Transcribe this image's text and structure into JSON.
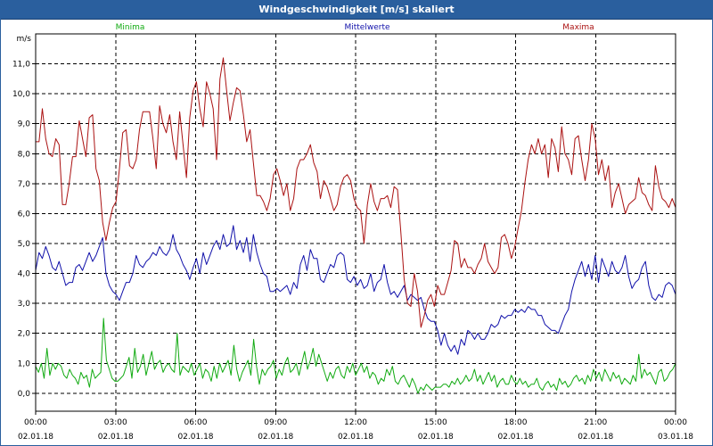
{
  "window": {
    "title": "Windgeschwindigkeit [m/s] skaliert"
  },
  "chart_data": {
    "type": "line",
    "title": "Windgeschwindigkeit [m/s] skaliert",
    "ylabel": "m/s",
    "xlabel": "",
    "ylim": [
      -0.6,
      12.0
    ],
    "xlim": [
      0,
      24
    ],
    "grid": true,
    "yticks": [
      0,
      1,
      2,
      3,
      4,
      5,
      6,
      7,
      8,
      9,
      10,
      11
    ],
    "ytick_labels": [
      "0,0",
      "1,0",
      "2,0",
      "3,0",
      "4,0",
      "5,0",
      "6,0",
      "7,0",
      "8,0",
      "9,0",
      "10,0",
      "11,0"
    ],
    "xticks": [
      {
        "x": 0,
        "time": "00:00",
        "date": "02.01.18"
      },
      {
        "x": 3,
        "time": "03:00",
        "date": "02.01.18"
      },
      {
        "x": 6,
        "time": "06:00",
        "date": "02.01.18"
      },
      {
        "x": 9,
        "time": "09:00",
        "date": "02.01.18"
      },
      {
        "x": 12,
        "time": "12:00",
        "date": "02.01.18"
      },
      {
        "x": 15,
        "time": "15:00",
        "date": "02.01.18"
      },
      {
        "x": 18,
        "time": "18:00",
        "date": "02.01.18"
      },
      {
        "x": 21,
        "time": "21:00",
        "date": "02.01.18"
      },
      {
        "x": 24,
        "time": "00:00",
        "date": "03.01.18"
      }
    ],
    "legend_placement": "top",
    "series": [
      {
        "name": "Minima",
        "color": "#11aa11",
        "values": [
          0.9,
          0.7,
          1.0,
          0.5,
          1.5,
          0.6,
          1.0,
          0.8,
          1.0,
          0.9,
          0.6,
          0.5,
          0.8,
          0.6,
          0.5,
          0.3,
          0.7,
          0.5,
          0.6,
          0.2,
          0.8,
          0.5,
          0.6,
          0.7,
          2.5,
          1.1,
          0.8,
          0.5,
          0.4,
          0.4,
          0.5,
          0.6,
          0.9,
          1.2,
          0.5,
          1.5,
          0.7,
          0.9,
          1.3,
          0.6,
          1.0,
          1.4,
          0.8,
          1.0,
          1.1,
          0.7,
          0.9,
          1.0,
          0.8,
          0.7,
          2.0,
          0.6,
          0.9,
          0.8,
          0.7,
          1.0,
          0.6,
          0.8,
          1.0,
          0.5,
          0.8,
          0.7,
          0.4,
          0.9,
          0.5,
          1.0,
          0.7,
          0.9,
          1.1,
          0.6,
          1.6,
          0.8,
          0.4,
          0.7,
          0.9,
          1.1,
          0.6,
          1.8,
          0.9,
          0.3,
          0.8,
          0.6,
          0.8,
          0.9,
          1.1,
          0.5,
          0.8,
          0.6,
          1.0,
          1.2,
          0.7,
          0.8,
          1.0,
          0.6,
          1.0,
          1.4,
          0.8,
          1.1,
          1.5,
          0.9,
          1.3,
          1.0,
          0.7,
          0.4,
          0.7,
          0.5,
          0.8,
          0.9,
          0.6,
          0.5,
          0.9,
          0.7,
          1.0,
          0.6,
          0.8,
          1.0,
          0.7,
          0.9,
          0.5,
          0.7,
          0.6,
          0.3,
          0.5,
          0.4,
          0.8,
          0.6,
          0.9,
          0.4,
          0.3,
          0.5,
          0.6,
          0.4,
          0.2,
          0.5,
          0.3,
          0.0,
          0.2,
          0.1,
          0.3,
          0.2,
          0.1,
          0.2,
          0.2,
          0.2,
          0.3,
          0.3,
          0.2,
          0.4,
          0.3,
          0.5,
          0.3,
          0.4,
          0.6,
          0.4,
          0.5,
          0.8,
          0.4,
          0.6,
          0.3,
          0.5,
          0.7,
          0.4,
          0.6,
          0.2,
          0.4,
          0.5,
          0.3,
          0.3,
          0.6,
          0.4,
          0.3,
          0.5,
          0.3,
          0.4,
          0.2,
          0.3,
          0.3,
          0.5,
          0.2,
          0.1,
          0.3,
          0.4,
          0.2,
          0.3,
          0.1,
          0.5,
          0.3,
          0.4,
          0.2,
          0.3,
          0.5,
          0.6,
          0.4,
          0.5,
          0.3,
          0.6,
          0.4,
          0.8,
          0.5,
          0.7,
          0.4,
          0.8,
          0.6,
          0.4,
          0.7,
          0.5,
          0.6,
          0.3,
          0.5,
          0.4,
          0.3,
          0.6,
          0.4,
          1.3,
          0.5,
          0.8,
          0.6,
          0.7,
          0.5,
          0.3,
          0.7,
          0.8,
          0.4,
          0.5,
          0.7,
          0.8,
          1.0
        ]
      },
      {
        "name": "Mittelwerte",
        "color": "#1111aa",
        "values": [
          4.1,
          4.7,
          4.5,
          4.9,
          4.6,
          4.2,
          4.1,
          4.4,
          4.0,
          3.6,
          3.7,
          3.7,
          4.2,
          4.3,
          4.1,
          4.4,
          4.7,
          4.4,
          4.6,
          4.9,
          5.2,
          4.0,
          3.6,
          3.4,
          3.3,
          3.1,
          3.4,
          3.7,
          3.7,
          4.0,
          4.6,
          4.3,
          4.2,
          4.4,
          4.5,
          4.7,
          4.6,
          4.9,
          4.7,
          4.6,
          4.8,
          5.3,
          4.8,
          4.6,
          4.3,
          4.1,
          3.8,
          4.2,
          4.5,
          4.0,
          4.7,
          4.3,
          4.6,
          4.9,
          5.1,
          4.8,
          5.3,
          4.9,
          5.0,
          5.6,
          4.8,
          5.1,
          4.7,
          5.2,
          4.4,
          5.3,
          4.7,
          4.3,
          4.0,
          3.9,
          3.4,
          3.4,
          3.5,
          3.4,
          3.5,
          3.6,
          3.3,
          3.7,
          3.5,
          4.3,
          4.6,
          4.1,
          4.8,
          4.5,
          4.5,
          3.8,
          3.7,
          4.0,
          4.3,
          4.2,
          4.6,
          4.7,
          4.6,
          3.8,
          3.7,
          3.9,
          3.6,
          3.8,
          3.5,
          3.6,
          4.0,
          3.4,
          3.7,
          3.8,
          4.3,
          3.7,
          3.3,
          3.4,
          3.2,
          3.4,
          3.6,
          3.1,
          3.3,
          3.2,
          3.1,
          3.2,
          2.8,
          2.5,
          2.4,
          2.4,
          2.1,
          1.6,
          2.0,
          1.6,
          1.4,
          1.6,
          1.3,
          1.8,
          1.6,
          2.1,
          2.0,
          1.8,
          2.0,
          1.8,
          1.8,
          2.0,
          2.3,
          2.2,
          2.3,
          2.6,
          2.5,
          2.6,
          2.6,
          2.8,
          2.7,
          2.8,
          2.7,
          2.9,
          2.8,
          2.8,
          2.6,
          2.6,
          2.3,
          2.2,
          2.1,
          2.1,
          2.0,
          2.3,
          2.6,
          2.8,
          3.4,
          3.8,
          4.1,
          4.4,
          3.9,
          4.3,
          3.8,
          4.6,
          3.7,
          4.5,
          4.2,
          3.9,
          4.4,
          4.1,
          4.0,
          4.2,
          4.6,
          3.9,
          3.5,
          3.7,
          3.8,
          4.2,
          4.4,
          3.6,
          3.2,
          3.1,
          3.3,
          3.2,
          3.6,
          3.7,
          3.6,
          3.3
        ]
      },
      {
        "name": "Maxima",
        "color": "#aa1111",
        "values": [
          8.4,
          8.4,
          9.5,
          8.5,
          8.0,
          7.9,
          8.5,
          8.3,
          6.3,
          6.3,
          7.0,
          7.9,
          7.9,
          9.1,
          8.5,
          7.9,
          9.2,
          9.3,
          7.5,
          7.1,
          5.7,
          5.1,
          5.7,
          6.2,
          6.4,
          7.5,
          8.7,
          8.8,
          7.6,
          7.5,
          7.8,
          8.8,
          9.4,
          9.4,
          9.4,
          8.5,
          7.5,
          9.6,
          9.0,
          8.7,
          9.3,
          8.4,
          7.8,
          9.4,
          8.3,
          7.2,
          9.2,
          10.1,
          10.4,
          9.5,
          8.9,
          10.4,
          10.0,
          9.5,
          7.8,
          10.5,
          11.2,
          10.1,
          9.1,
          9.7,
          10.2,
          10.1,
          9.3,
          8.4,
          8.8,
          7.7,
          6.6,
          6.6,
          6.4,
          6.1,
          6.5,
          7.3,
          7.5,
          7.1,
          6.6,
          7.0,
          6.1,
          6.5,
          7.5,
          7.8,
          7.8,
          8.0,
          8.3,
          7.7,
          7.4,
          6.5,
          7.1,
          6.9,
          6.5,
          6.1,
          6.3,
          6.9,
          7.2,
          7.3,
          7.1,
          6.5,
          6.2,
          6.1,
          5.0,
          6.3,
          7.0,
          6.4,
          6.1,
          6.5,
          6.5,
          6.6,
          6.2,
          6.9,
          6.8,
          5.4,
          3.8,
          3.0,
          2.9,
          4.0,
          3.4,
          2.2,
          2.6,
          3.1,
          3.3,
          2.9,
          3.6,
          3.3,
          3.3,
          3.7,
          4.1,
          5.1,
          5.0,
          4.2,
          4.5,
          4.2,
          4.2,
          4.0,
          4.3,
          4.5,
          5.0,
          4.4,
          4.2,
          4.0,
          4.2,
          5.2,
          5.3,
          5.0,
          4.5,
          4.9,
          5.5,
          6.1,
          7.0,
          7.8,
          8.3,
          8.0,
          8.5,
          8.0,
          8.3,
          7.2,
          8.5,
          8.2,
          7.4,
          8.9,
          8.0,
          7.8,
          7.3,
          8.5,
          8.6,
          7.8,
          7.1,
          7.8,
          9.0,
          8.5,
          7.3,
          7.8,
          7.1,
          7.6,
          6.2,
          6.7,
          7.0,
          6.5,
          6.0,
          6.3,
          6.4,
          6.5,
          7.2,
          6.7,
          6.6,
          6.3,
          6.1,
          7.6,
          6.9,
          6.5,
          6.4,
          6.2,
          6.5,
          6.2
        ]
      }
    ]
  }
}
